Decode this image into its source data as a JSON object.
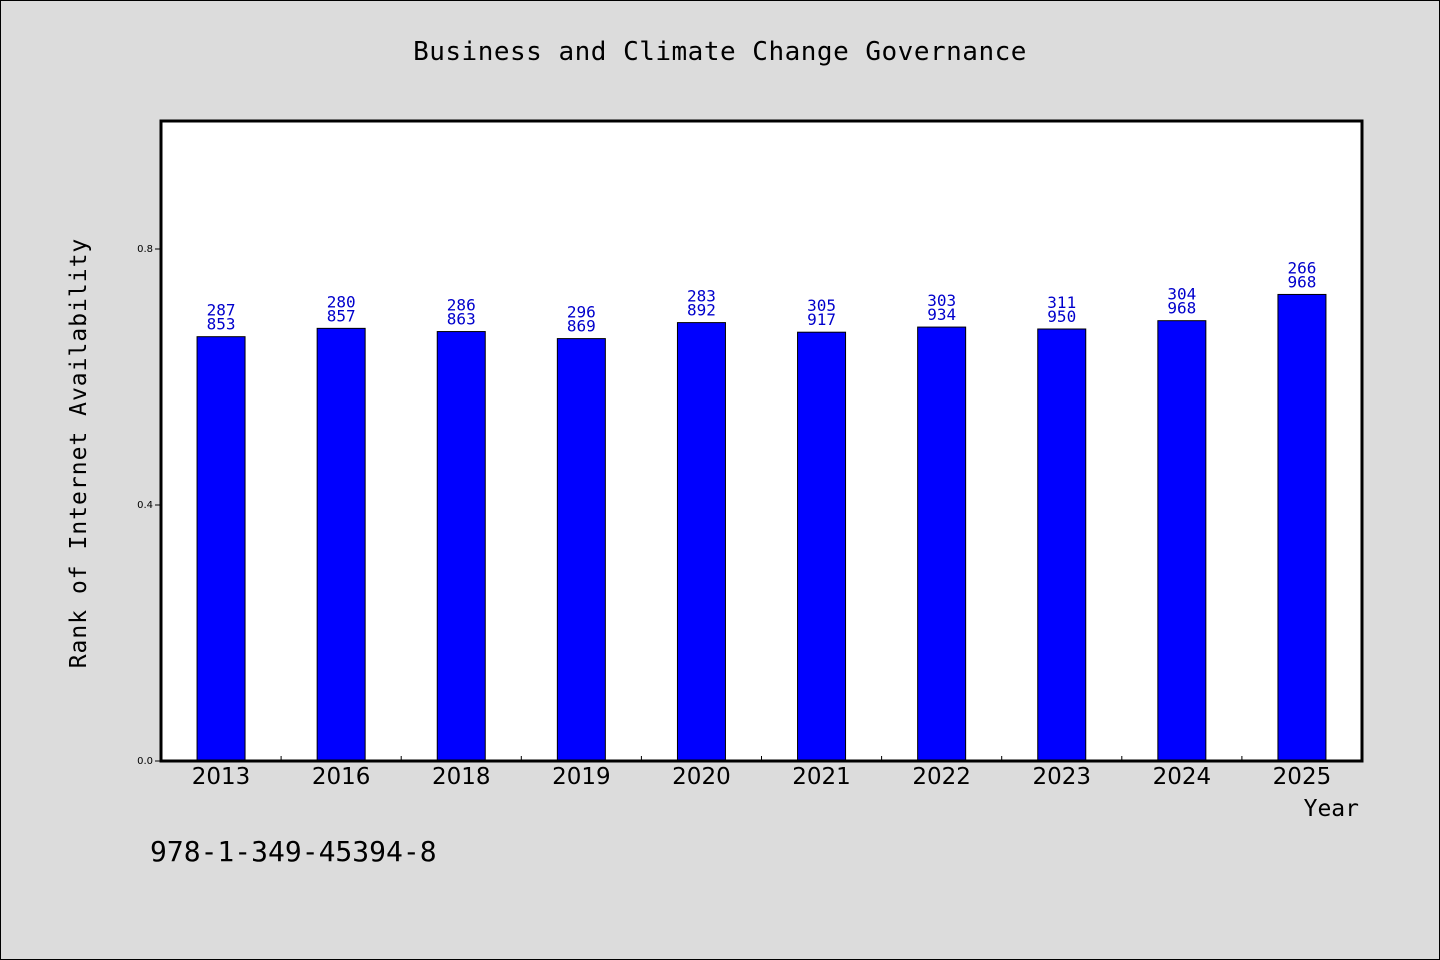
{
  "chart_data": {
    "type": "bar",
    "title": "Business and Climate Change Governance",
    "xlabel": "Year",
    "ylabel": "Rank of Internet Availability",
    "ylim": [
      0,
      1.0
    ],
    "yticks": [
      "0.0",
      "0.4",
      "0.8"
    ],
    "categories": [
      "2013",
      "2016",
      "2018",
      "2019",
      "2020",
      "2021",
      "2022",
      "2023",
      "2024",
      "2025"
    ],
    "values": [
      0.663,
      0.676,
      0.671,
      0.66,
      0.685,
      0.67,
      0.678,
      0.675,
      0.688,
      0.729
    ],
    "labels": [
      [
        "287",
        "853"
      ],
      [
        "280",
        "857"
      ],
      [
        "286",
        "863"
      ],
      [
        "296",
        "869"
      ],
      [
        "283",
        "892"
      ],
      [
        "305",
        "917"
      ],
      [
        "303",
        "934"
      ],
      [
        "311",
        "950"
      ],
      [
        "304",
        "968"
      ],
      [
        "266",
        "968"
      ]
    ],
    "bar_color": "#0000ff",
    "label_color": "#0000cc",
    "grid": false,
    "legend": "none"
  },
  "footer": {
    "isbn": "978-1-349-45394-8"
  }
}
